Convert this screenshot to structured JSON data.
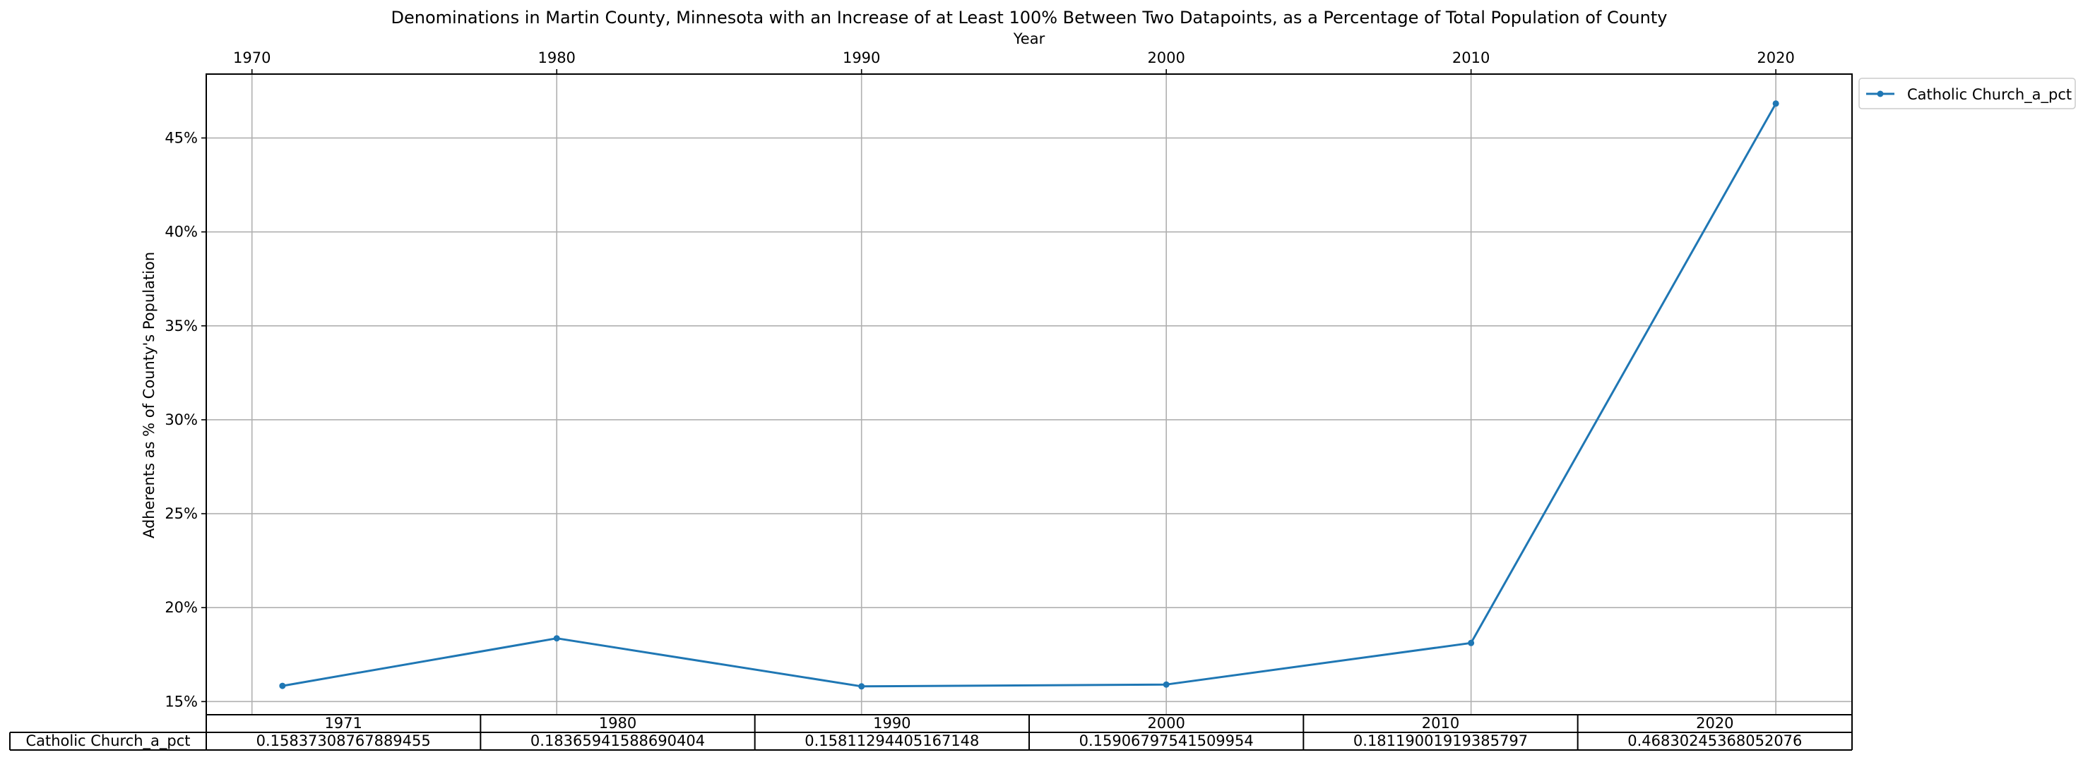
{
  "chart_data": {
    "type": "line",
    "title": "Denominations in Martin County, Minnesota with an Increase of at Least 100% Between Two Datapoints, as a Percentage of Total Population of County",
    "xlabel": "Year",
    "ylabel": "Adherents as % of County's Population",
    "x": [
      1971,
      1980,
      1990,
      2000,
      2010,
      2020
    ],
    "series": [
      {
        "name": "Catholic Church_a_pct",
        "values": [
          0.15837308767889455,
          0.18365941588690404,
          0.15811294405167148,
          0.15906797541509954,
          0.18119001919385797,
          0.46830245368052076
        ],
        "color": "#1f77b4"
      }
    ],
    "x_ticks": [
      "1970",
      "1980",
      "1990",
      "2000",
      "2010",
      "2020"
    ],
    "y_ticks": [
      "15%",
      "20%",
      "25%",
      "30%",
      "35%",
      "40%",
      "45%"
    ],
    "xlim": [
      1968.5,
      2022.5
    ],
    "ylim": [
      0.143,
      0.484
    ],
    "grid": true,
    "legend_position": "outside-top-right",
    "x_axis_position": "top",
    "table": {
      "col_labels": [
        "1971",
        "1980",
        "1990",
        "2000",
        "2010",
        "2020"
      ],
      "row_label": "Catholic Church_a_pct",
      "cells": [
        "0.15837308767889455",
        "0.18365941588690404",
        "0.15811294405167148",
        "0.15906797541509954",
        "0.18119001919385797",
        "0.46830245368052076"
      ]
    }
  }
}
